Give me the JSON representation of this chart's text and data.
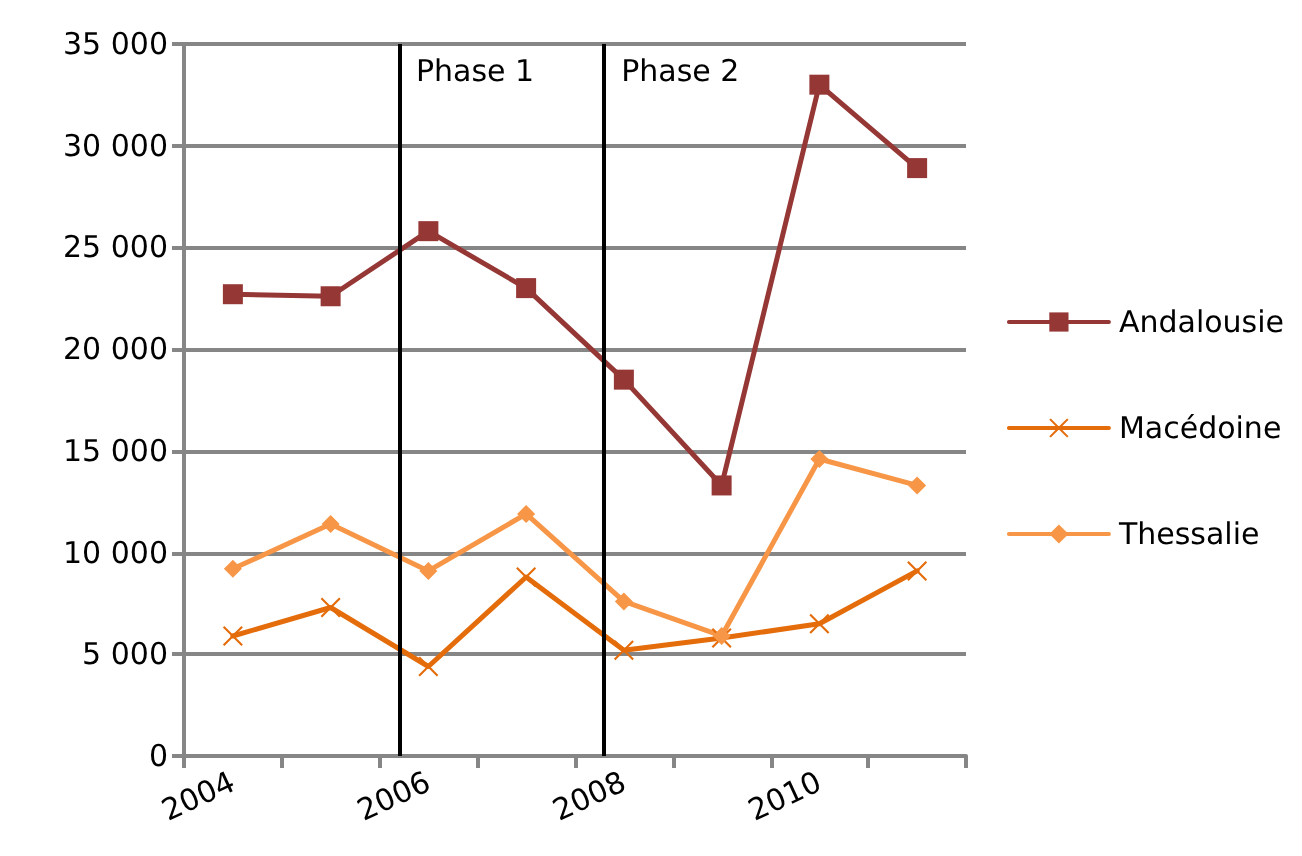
{
  "chart_data": {
    "type": "line",
    "x": [
      2004,
      2005,
      2006,
      2007,
      2008,
      2009,
      2010,
      2011
    ],
    "xlim": [
      2003.5,
      2011.5
    ],
    "xticks": [
      {
        "value": 2003.5,
        "label": null
      },
      {
        "value": 2004,
        "label": "2004"
      },
      {
        "value": 2004.5,
        "label": null
      },
      {
        "value": 2005.5,
        "label": null
      },
      {
        "value": 2006,
        "label": "2006"
      },
      {
        "value": 2006.5,
        "label": null
      },
      {
        "value": 2007.5,
        "label": null
      },
      {
        "value": 2008,
        "label": "2008"
      },
      {
        "value": 2008.5,
        "label": null
      },
      {
        "value": 2009.5,
        "label": null
      },
      {
        "value": 2010,
        "label": "2010"
      },
      {
        "value": 2010.5,
        "label": null
      },
      {
        "value": 2011.5,
        "label": null
      }
    ],
    "ylim": [
      0,
      35000
    ],
    "yticks": [
      {
        "value": 0,
        "label": "0"
      },
      {
        "value": 5000,
        "label": "5 000"
      },
      {
        "value": 10000,
        "label": "10 000"
      },
      {
        "value": 15000,
        "label": "15 000"
      },
      {
        "value": 20000,
        "label": "20 000"
      },
      {
        "value": 25000,
        "label": "25 000"
      },
      {
        "value": 30000,
        "label": "30 000"
      },
      {
        "value": 35000,
        "label": "35 000"
      }
    ],
    "grid": "y",
    "legend": "right",
    "series": [
      {
        "name": "Andalousie",
        "color": "#953735",
        "marker": "square",
        "values": [
          22700,
          22600,
          25800,
          23000,
          18500,
          13300,
          33000,
          28900
        ]
      },
      {
        "name": "Macédoine",
        "color": "#e46c0a",
        "marker": "cross",
        "values": [
          5900,
          7300,
          4400,
          8800,
          5200,
          5800,
          6500,
          9100
        ]
      },
      {
        "name": "Thessalie",
        "color": "#f79646",
        "marker": "diamond",
        "values": [
          9200,
          11400,
          9100,
          11900,
          7600,
          5900,
          14600,
          13300
        ]
      }
    ],
    "ref_lines": [
      {
        "axis": "x",
        "value": 2005.7,
        "label": "Phase 1",
        "color": "#000000"
      },
      {
        "axis": "x",
        "value": 2007.8,
        "label": "Phase 2",
        "color": "#000000"
      }
    ]
  }
}
